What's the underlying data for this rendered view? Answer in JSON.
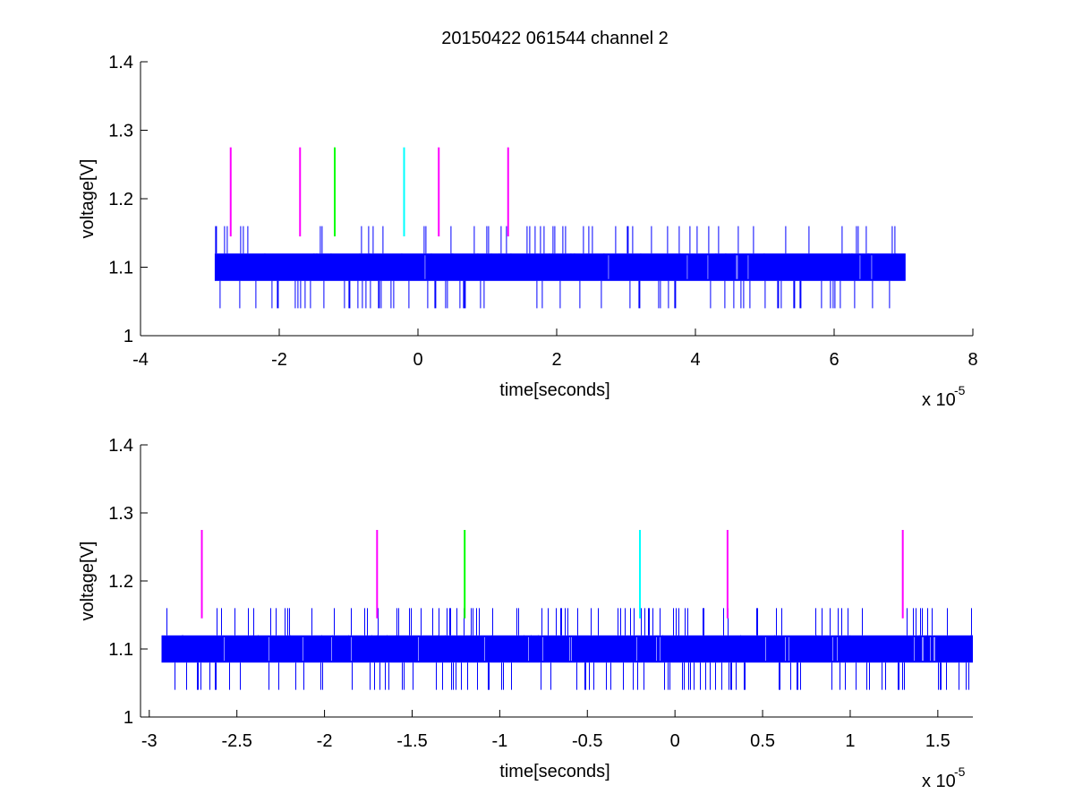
{
  "chart_data": [
    {
      "type": "line",
      "title": "20150422 061544 channel 2",
      "xlabel": "time[seconds]",
      "ylabel": "voltage[V]",
      "x_multiplier_label": {
        "base": "x 10",
        "exponent": "-5"
      },
      "xlim": [
        -4,
        8
      ],
      "ylim": [
        1,
        1.4
      ],
      "xticks": [
        -4,
        -2,
        0,
        2,
        4,
        6,
        8
      ],
      "xtick_labels": [
        "-4",
        "-2",
        "0",
        "2",
        "4",
        "6",
        "8"
      ],
      "yticks": [
        1,
        1.1,
        1.2,
        1.3,
        1.4
      ],
      "ytick_labels": [
        "1",
        "1.1",
        "1.2",
        "1.3",
        "1.4"
      ],
      "grid": false,
      "series": [
        {
          "kind": "signal",
          "color": "#0000ff",
          "x_range": [
            -2.93,
            7.03
          ],
          "dense_band": [
            1.08,
            1.12
          ],
          "spike_range": [
            1.04,
            1.16
          ]
        }
      ],
      "markers": [
        {
          "x": -2.7,
          "y_range": [
            1.145,
            1.275
          ],
          "color": "#ff00ff"
        },
        {
          "x": -1.7,
          "y_range": [
            1.145,
            1.275
          ],
          "color": "#ff00ff"
        },
        {
          "x": -1.2,
          "y_range": [
            1.145,
            1.275
          ],
          "color": "#00ff00"
        },
        {
          "x": -0.2,
          "y_range": [
            1.145,
            1.275
          ],
          "color": "#00ffff"
        },
        {
          "x": 0.3,
          "y_range": [
            1.145,
            1.275
          ],
          "color": "#ff00ff"
        },
        {
          "x": 1.3,
          "y_range": [
            1.145,
            1.275
          ],
          "color": "#ff00ff"
        }
      ]
    },
    {
      "type": "line",
      "title": "",
      "xlabel": "time[seconds]",
      "ylabel": "voltage[V]",
      "x_multiplier_label": {
        "base": "x 10",
        "exponent": "-5"
      },
      "xlim": [
        -3.05,
        1.7
      ],
      "ylim": [
        1,
        1.4
      ],
      "xticks": [
        -3,
        -2.5,
        -2,
        -1.5,
        -1,
        -0.5,
        0,
        0.5,
        1,
        1.5
      ],
      "xtick_labels": [
        "-3",
        "-2.5",
        "-2",
        "-1.5",
        "-1",
        "-0.5",
        "0",
        "0.5",
        "1",
        "1.5"
      ],
      "yticks": [
        1,
        1.1,
        1.2,
        1.3,
        1.4
      ],
      "ytick_labels": [
        "1",
        "1.1",
        "1.2",
        "1.3",
        "1.4"
      ],
      "grid": false,
      "series": [
        {
          "kind": "signal",
          "color": "#0000ff",
          "x_range": [
            -2.93,
            1.7
          ],
          "dense_band": [
            1.08,
            1.12
          ],
          "spike_range": [
            1.04,
            1.16
          ]
        }
      ],
      "markers": [
        {
          "x": -2.7,
          "y_range": [
            1.145,
            1.275
          ],
          "color": "#ff00ff"
        },
        {
          "x": -1.7,
          "y_range": [
            1.145,
            1.275
          ],
          "color": "#ff00ff"
        },
        {
          "x": -1.2,
          "y_range": [
            1.145,
            1.275
          ],
          "color": "#00ff00"
        },
        {
          "x": -0.2,
          "y_range": [
            1.145,
            1.275
          ],
          "color": "#00ffff"
        },
        {
          "x": 0.3,
          "y_range": [
            1.145,
            1.275
          ],
          "color": "#ff00ff"
        },
        {
          "x": 1.3,
          "y_range": [
            1.145,
            1.275
          ],
          "color": "#ff00ff"
        }
      ]
    }
  ]
}
